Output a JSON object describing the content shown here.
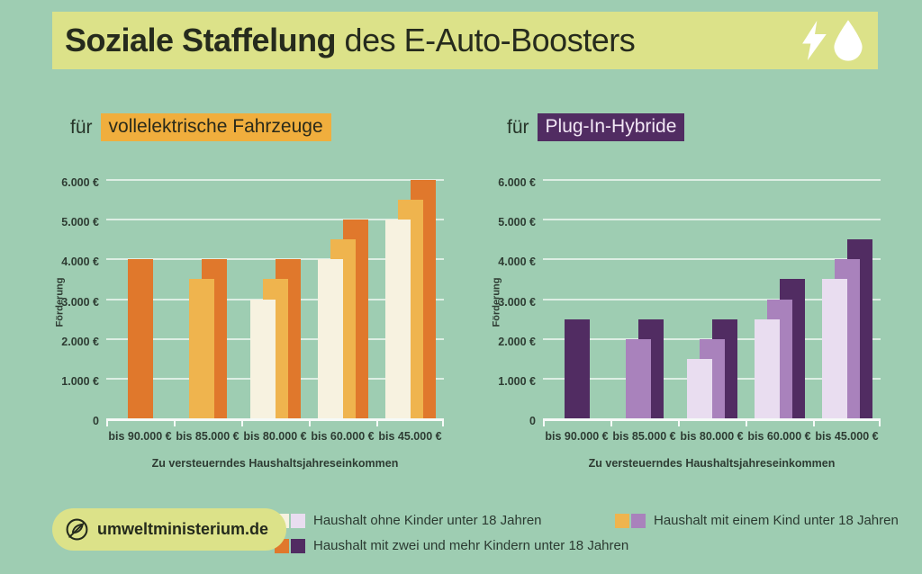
{
  "title": {
    "bold": "Soziale Staffelung",
    "regular": " des E-Auto-Boosters"
  },
  "colors": {
    "background": "#9ecdb2",
    "title_bar": "#dce289",
    "ev_front": "#f7f2e0",
    "ev_mid": "#efb44e",
    "ev_back": "#e0782c",
    "hybrid_front": "#e9ddf0",
    "hybrid_mid": "#a982bc",
    "hybrid_back": "#512c62",
    "grid_white": "#ffffff"
  },
  "icons": [
    "lightning-icon",
    "water-drop-icon",
    "leaf-logo-icon"
  ],
  "chart_data": [
    {
      "type": "bar",
      "title_prefix": "für",
      "title_highlight": "vollelektrische Fahrzeuge",
      "highlight_bg": "#f0ae3d",
      "highlight_text_color": "#2a2a1a",
      "ylabel": "Förderung",
      "xlabel": "Zu versteuerndes Haushaltsjahreseinkommen",
      "ylim": [
        0,
        6000
      ],
      "ymax": 6000,
      "ytick_step": 1000,
      "grid": true,
      "yticks": [
        {
          "label": "6.000 €",
          "value": 6000
        },
        {
          "label": "5.000 €",
          "value": 5000
        },
        {
          "label": "4.000 €",
          "value": 4000
        },
        {
          "label": "3.000 €",
          "value": 3000
        },
        {
          "label": "2.000 €",
          "value": 2000
        },
        {
          "label": "1.000 €",
          "value": 1000
        },
        {
          "label": "0",
          "value": 0
        }
      ],
      "categories": [
        "bis 90.000 €",
        "bis 85.000 €",
        "bis 80.000 €",
        "bis 60.000 €",
        "bis 45.000 €"
      ],
      "series": [
        {
          "name": "Haushalt ohne Kinder unter 18 Jahren",
          "color": "#f7f2e0",
          "values": [
            null,
            null,
            3000,
            4000,
            5000
          ]
        },
        {
          "name": "Haushalt mit einem Kind unter 18 Jahren",
          "color": "#efb44e",
          "values": [
            null,
            3500,
            3500,
            4500,
            5500
          ]
        },
        {
          "name": "Haushalt mit zwei und mehr Kindern unter 18 Jahren",
          "color": "#e0782c",
          "values": [
            4000,
            4000,
            4000,
            5000,
            6000
          ]
        }
      ]
    },
    {
      "type": "bar",
      "title_prefix": "für",
      "title_highlight": "Plug-In-Hybride",
      "highlight_bg": "#512c62",
      "highlight_text_color": "#f2e7f5",
      "ylabel": "Förderung",
      "xlabel": "Zu versteuerndes Haushaltsjahreseinkommen",
      "ylim": [
        0,
        6000
      ],
      "ymax": 6000,
      "ytick_step": 1000,
      "grid": true,
      "yticks": [
        {
          "label": "6.000 €",
          "value": 6000
        },
        {
          "label": "5.000 €",
          "value": 5000
        },
        {
          "label": "4.000 €",
          "value": 4000
        },
        {
          "label": "3.000 €",
          "value": 3000
        },
        {
          "label": "2.000 €",
          "value": 2000
        },
        {
          "label": "1.000 €",
          "value": 1000
        },
        {
          "label": "0",
          "value": 0
        }
      ],
      "categories": [
        "bis 90.000 €",
        "bis 85.000 €",
        "bis 80.000 €",
        "bis 60.000 €",
        "bis 45.000 €"
      ],
      "series": [
        {
          "name": "Haushalt ohne Kinder unter 18 Jahren",
          "color": "#e9ddf0",
          "values": [
            null,
            null,
            1500,
            2500,
            3500
          ]
        },
        {
          "name": "Haushalt mit einem Kind unter 18 Jahren",
          "color": "#a982bc",
          "values": [
            null,
            2000,
            2000,
            3000,
            4000
          ]
        },
        {
          "name": "Haushalt mit zwei und mehr Kindern unter 18 Jahren",
          "color": "#512c62",
          "values": [
            2500,
            2500,
            2500,
            3500,
            4500
          ]
        }
      ]
    }
  ],
  "legend": {
    "items": [
      {
        "label": "Haushalt ohne Kinder unter 18 Jahren",
        "colors": [
          "#f7f2e0",
          "#e9ddf0"
        ]
      },
      {
        "label": "Haushalt mit einem Kind unter 18 Jahren",
        "colors": [
          "#efb44e",
          "#a982bc"
        ]
      },
      {
        "label": "Haushalt mit zwei und mehr Kindern unter 18 Jahren",
        "colors": [
          "#e0782c",
          "#512c62"
        ]
      }
    ]
  },
  "badge": {
    "text": "umweltministerium.de"
  }
}
